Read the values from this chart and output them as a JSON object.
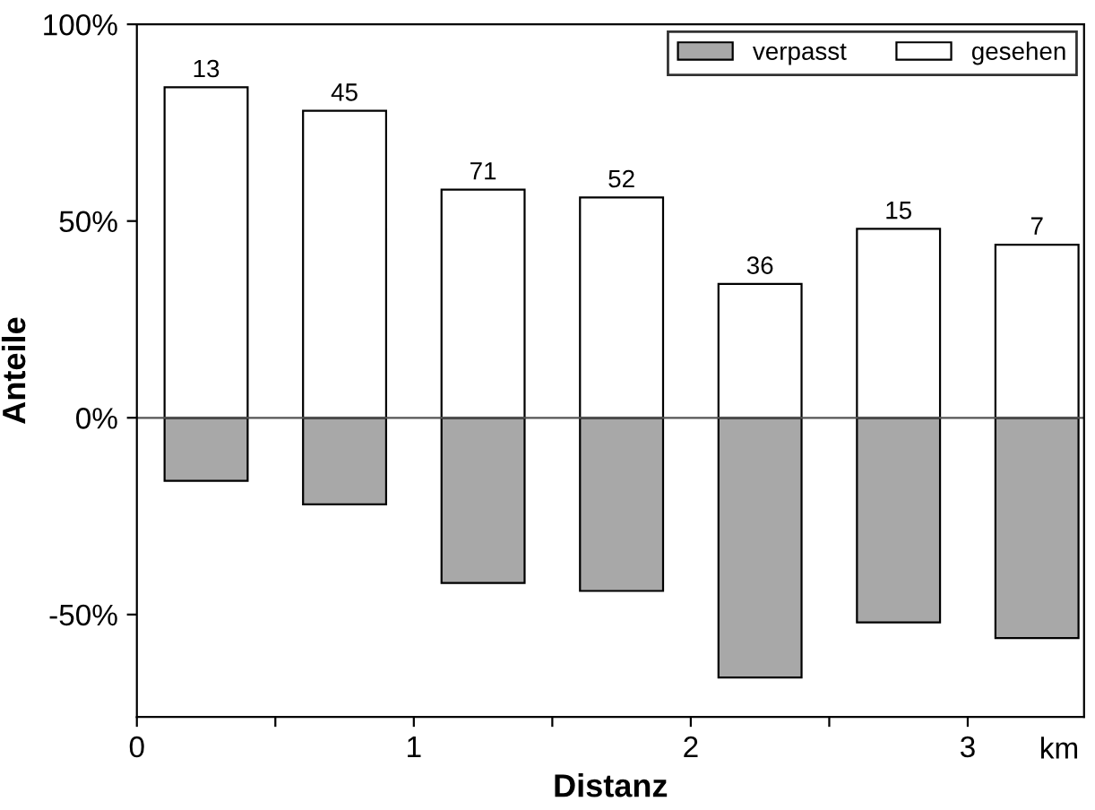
{
  "chart_data": {
    "type": "bar",
    "stacked": true,
    "xlabel": "Distanz",
    "ylabel": "Anteile",
    "x": [
      0.25,
      0.75,
      1.25,
      1.75,
      2.25,
      2.75,
      3.25
    ],
    "series": [
      {
        "name": "verpasst",
        "color": "#a8a8a8",
        "values": [
          -16,
          -22,
          -42,
          -44,
          -66,
          -52,
          -56
        ]
      },
      {
        "name": "gesehen",
        "color": "#ffffff",
        "values": [
          84,
          78,
          58,
          56,
          34,
          48,
          44
        ]
      }
    ],
    "xlim": [
      0,
      3.42
    ],
    "xticks": [
      0,
      {
        "value": 0.5,
        "label": null
      },
      1,
      {
        "value": 1.5,
        "label": null
      },
      2,
      {
        "value": 2.5,
        "label": null
      },
      3
    ],
    "ylim": [
      -76,
      100
    ],
    "yticks": [
      {
        "value": -50,
        "label": "-50%"
      },
      {
        "value": 0,
        "label": "0%"
      },
      {
        "value": 50,
        "label": "50%"
      },
      {
        "value": 100,
        "label": "100%"
      }
    ],
    "ref_lines": [
      {
        "axis": "y",
        "value": 0,
        "color": "#555555"
      }
    ],
    "annotations": [
      "km",
      {
        "text": "13",
        "x": 0.25,
        "y": 84
      },
      {
        "text": "45",
        "x": 0.75,
        "y": 78
      },
      {
        "text": "71",
        "x": 1.25,
        "y": 58
      },
      {
        "text": "52",
        "x": 1.75,
        "y": 56
      },
      {
        "text": "36",
        "x": 2.25,
        "y": 34
      },
      {
        "text": "15",
        "x": 2.75,
        "y": 48
      },
      {
        "text": "7",
        "x": 3.25,
        "y": 44
      }
    ],
    "legend": "top right",
    "grid": false
  }
}
